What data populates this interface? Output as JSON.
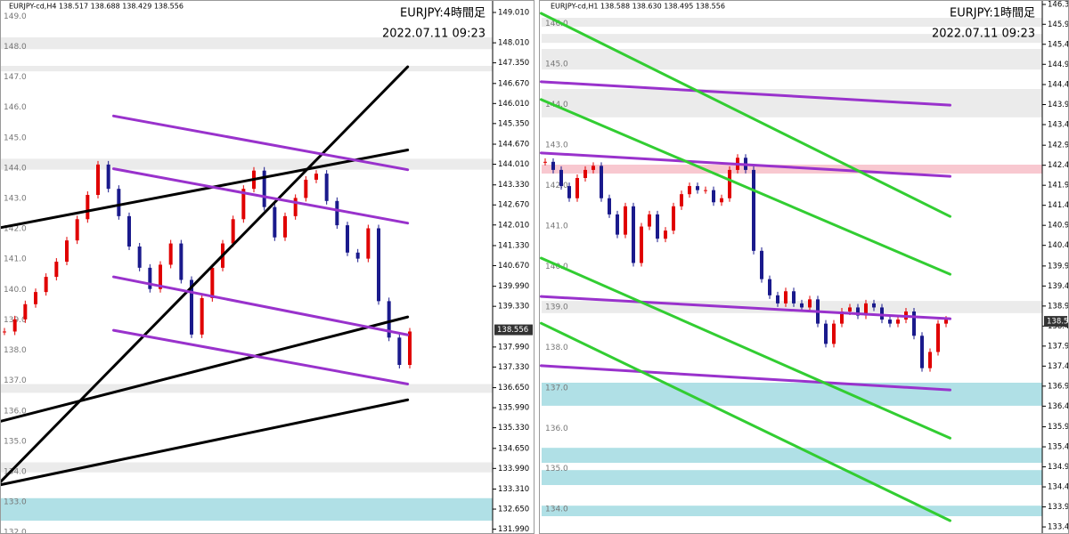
{
  "chart_data": [
    {
      "type": "candlestick",
      "header": "EURJPY-cd,H4  138.517 138.688 138.429 138.556",
      "title": "EURJPY:4時間足",
      "subtitle": "2022.07.11 09:23",
      "values": [
        138.5,
        138.9,
        139.4,
        139.8,
        140.3,
        140.8,
        141.5,
        142.2,
        143.0,
        144.0,
        143.2,
        142.3,
        141.3,
        140.6,
        139.9,
        140.7,
        141.4,
        140.2,
        138.4,
        139.6,
        140.6,
        141.4,
        142.2,
        143.2,
        143.8,
        142.6,
        141.6,
        142.3,
        142.9,
        143.5,
        143.7,
        142.8,
        142.0,
        141.1,
        140.9,
        141.9,
        139.5,
        138.3,
        137.4,
        138.5
      ],
      "up_color": "#e00000",
      "down_color": "#1a1a8c",
      "price_label": 138.556,
      "ylim": [
        131.83,
        149.42
      ],
      "yticks": [
        {
          "value": 149.01,
          "label": "149.010"
        },
        {
          "value": 148.01,
          "label": "148.010"
        },
        {
          "value": 147.35,
          "label": "147.350"
        },
        {
          "value": 146.67,
          "label": "146.670"
        },
        {
          "value": 146.01,
          "label": "146.010"
        },
        {
          "value": 145.35,
          "label": "145.350"
        },
        {
          "value": 144.67,
          "label": "144.670"
        },
        {
          "value": 144.01,
          "label": "144.010"
        },
        {
          "value": 143.33,
          "label": "143.330"
        },
        {
          "value": 142.67,
          "label": "142.670"
        },
        {
          "value": 142.01,
          "label": "142.010"
        },
        {
          "value": 141.33,
          "label": "141.330"
        },
        {
          "value": 140.67,
          "label": "140.670"
        },
        {
          "value": 139.99,
          "label": "139.990"
        },
        {
          "value": 139.33,
          "label": "139.330"
        },
        {
          "value": 137.99,
          "label": "137.990"
        },
        {
          "value": 137.33,
          "label": "137.330"
        },
        {
          "value": 136.65,
          "label": "136.650"
        },
        {
          "value": 135.99,
          "label": "135.990"
        },
        {
          "value": 135.33,
          "label": "135.330"
        },
        {
          "value": 134.65,
          "label": "134.650"
        },
        {
          "value": 133.99,
          "label": "133.990"
        },
        {
          "value": 133.31,
          "label": "133.310"
        },
        {
          "value": 132.65,
          "label": "132.650"
        },
        {
          "value": 131.99,
          "label": "131.990"
        }
      ],
      "levels": [
        {
          "value": 149,
          "label": "149.0"
        },
        {
          "value": 148,
          "label": "148.0"
        },
        {
          "value": 147,
          "label": "147.0"
        },
        {
          "value": 146,
          "label": "146.0"
        },
        {
          "value": 145,
          "label": "145.0"
        },
        {
          "value": 144,
          "label": "144.0"
        },
        {
          "value": 143,
          "label": "143.0"
        },
        {
          "value": 142,
          "label": "142.0"
        },
        {
          "value": 141,
          "label": "141.0"
        },
        {
          "value": 140,
          "label": "140.0"
        },
        {
          "value": 139,
          "label": "139.0"
        },
        {
          "value": 138,
          "label": "138.0"
        },
        {
          "value": 137,
          "label": "137.0"
        },
        {
          "value": 136,
          "label": "136.0"
        },
        {
          "value": 135,
          "label": "135.0"
        },
        {
          "value": 134,
          "label": "134.0"
        },
        {
          "value": 133,
          "label": "133.0"
        },
        {
          "value": 132,
          "label": "132.0"
        }
      ],
      "zones": [
        {
          "color": "#ebebeb",
          "range": [
            147.8,
            148.19
          ]
        },
        {
          "color": "#ebebeb",
          "range": [
            147.07,
            147.25
          ]
        },
        {
          "color": "#ebebeb",
          "range": [
            143.83,
            144.19
          ]
        },
        {
          "color": "#ebebeb",
          "range": [
            136.48,
            136.77
          ]
        },
        {
          "color": "#ebebeb",
          "range": [
            133.86,
            134.19
          ]
        },
        {
          "color": "#b0e0e6",
          "range": [
            132.27,
            133.01
          ]
        }
      ],
      "lines": [
        {
          "color": "#000000",
          "x": [
            -0.4,
            38.8
          ],
          "y": [
            133.54,
            147.22
          ]
        },
        {
          "color": "#000000",
          "x": [
            -0.4,
            38.8
          ],
          "y": [
            141.92,
            144.48
          ]
        },
        {
          "color": "#000000",
          "x": [
            -0.4,
            38.8
          ],
          "y": [
            135.54,
            138.98
          ]
        },
        {
          "color": "#000000",
          "x": [
            -0.4,
            38.8
          ],
          "y": [
            133.45,
            136.25
          ]
        },
        {
          "color": "#9932cc",
          "x": [
            10.5,
            38.8
          ],
          "y": [
            145.6,
            143.83
          ]
        },
        {
          "color": "#9932cc",
          "x": [
            10.5,
            38.8
          ],
          "y": [
            143.86,
            142.07
          ]
        },
        {
          "color": "#9932cc",
          "x": [
            10.5,
            38.8
          ],
          "y": [
            140.3,
            138.39
          ]
        },
        {
          "color": "#9932cc",
          "x": [
            10.5,
            38.8
          ],
          "y": [
            138.54,
            136.77
          ]
        }
      ]
    },
    {
      "type": "candlestick",
      "header": "EURJPY-cd,H1  138.588 138.630 138.495 138.556",
      "title": "EURJPY:1時間足",
      "subtitle": "2022.07.11 09:23",
      "values": [
        142.5,
        142.3,
        141.9,
        141.6,
        142.1,
        142.3,
        142.4,
        141.6,
        141.2,
        140.7,
        141.4,
        140.0,
        140.9,
        141.2,
        140.6,
        140.8,
        141.4,
        141.7,
        141.9,
        141.8,
        141.8,
        141.5,
        141.6,
        142.3,
        142.6,
        142.3,
        140.3,
        139.6,
        139.2,
        139.0,
        139.3,
        139.0,
        138.9,
        139.1,
        138.5,
        138.0,
        138.5,
        138.8,
        138.9,
        138.7,
        139.0,
        138.9,
        138.6,
        138.5,
        138.6,
        138.8,
        138.2,
        137.4,
        137.8,
        138.5,
        138.6
      ],
      "up_color": "#e00000",
      "down_color": "#1a1a8c",
      "price_label": 138.556,
      "ylim": [
        133.3,
        146.5
      ],
      "yticks": [
        {
          "value": 146.39,
          "label": "146.390"
        },
        {
          "value": 145.9,
          "label": "145.900"
        },
        {
          "value": 145.405,
          "label": "145.405"
        },
        {
          "value": 144.91,
          "label": "144.910"
        },
        {
          "value": 144.41,
          "label": "144.410"
        },
        {
          "value": 143.915,
          "label": "143.915"
        },
        {
          "value": 143.42,
          "label": "143.420"
        },
        {
          "value": 142.91,
          "label": "142.910"
        },
        {
          "value": 142.415,
          "label": "142.415"
        },
        {
          "value": 141.92,
          "label": "141.920"
        },
        {
          "value": 141.425,
          "label": "141.425"
        },
        {
          "value": 140.93,
          "label": "140.930"
        },
        {
          "value": 140.435,
          "label": "140.435"
        },
        {
          "value": 139.925,
          "label": "139.925"
        },
        {
          "value": 139.43,
          "label": "139.430"
        },
        {
          "value": 138.935,
          "label": "138.935"
        },
        {
          "value": 138.44,
          "label": "138.440"
        },
        {
          "value": 137.945,
          "label": "137.945"
        },
        {
          "value": 137.45,
          "label": "137.450"
        },
        {
          "value": 136.955,
          "label": "136.955"
        },
        {
          "value": 136.46,
          "label": "136.460"
        },
        {
          "value": 135.95,
          "label": "135.950"
        },
        {
          "value": 135.455,
          "label": "135.455"
        },
        {
          "value": 134.96,
          "label": "134.960"
        },
        {
          "value": 134.465,
          "label": "134.465"
        },
        {
          "value": 133.97,
          "label": "133.970"
        },
        {
          "value": 133.475,
          "label": "133.475"
        }
      ],
      "levels": [
        {
          "value": 146,
          "label": "146.0"
        },
        {
          "value": 145,
          "label": "145.0"
        },
        {
          "value": 144,
          "label": "144.0"
        },
        {
          "value": 143,
          "label": "143.0"
        },
        {
          "value": 142,
          "label": "142.0"
        },
        {
          "value": 141,
          "label": "141.0"
        },
        {
          "value": 140,
          "label": "140.0"
        },
        {
          "value": 139,
          "label": "139.0"
        },
        {
          "value": 138,
          "label": "138.0"
        },
        {
          "value": 137,
          "label": "137.0"
        },
        {
          "value": 136,
          "label": "136.0"
        },
        {
          "value": 135,
          "label": "135.0"
        },
        {
          "value": 134,
          "label": "134.0"
        }
      ],
      "zones": [
        {
          "color": "#ebebeb",
          "range": [
            145.84,
            146.06
          ]
        },
        {
          "color": "#ebebeb",
          "range": [
            145.44,
            145.66
          ]
        },
        {
          "color": "#ebebeb",
          "range": [
            144.78,
            145.29
          ]
        },
        {
          "color": "#ebebeb",
          "range": [
            143.6,
            144.3
          ]
        },
        {
          "color": "#ebebeb",
          "range": [
            138.76,
            139.06
          ]
        },
        {
          "color": "#f8c8d0",
          "range": [
            142.21,
            142.43
          ]
        },
        {
          "color": "#b0e0e6",
          "range": [
            136.47,
            137.04
          ]
        },
        {
          "color": "#b0e0e6",
          "range": [
            135.06,
            135.43
          ]
        },
        {
          "color": "#b0e0e6",
          "range": [
            134.51,
            134.88
          ]
        },
        {
          "color": "#b0e0e6",
          "range": [
            133.74,
            134.0
          ]
        }
      ],
      "lines": [
        {
          "color": "#9932cc",
          "x": [
            -0.5,
            50.5
          ],
          "y": [
            144.48,
            143.9
          ]
        },
        {
          "color": "#9932cc",
          "x": [
            -0.5,
            50.5
          ],
          "y": [
            142.72,
            142.14
          ]
        },
        {
          "color": "#9932cc",
          "x": [
            -0.5,
            50.5
          ],
          "y": [
            139.17,
            138.62
          ]
        },
        {
          "color": "#9932cc",
          "x": [
            -0.5,
            50.5
          ],
          "y": [
            137.46,
            136.86
          ]
        },
        {
          "color": "#32cd32",
          "x": [
            -0.5,
            50.5
          ],
          "y": [
            146.17,
            141.15
          ]
        },
        {
          "color": "#32cd32",
          "x": [
            -0.5,
            50.5
          ],
          "y": [
            144.04,
            139.72
          ]
        },
        {
          "color": "#32cd32",
          "x": [
            -0.5,
            50.5
          ],
          "y": [
            140.12,
            135.67
          ]
        },
        {
          "color": "#32cd32",
          "x": [
            -0.5,
            50.5
          ],
          "y": [
            138.51,
            133.63
          ]
        }
      ]
    }
  ]
}
